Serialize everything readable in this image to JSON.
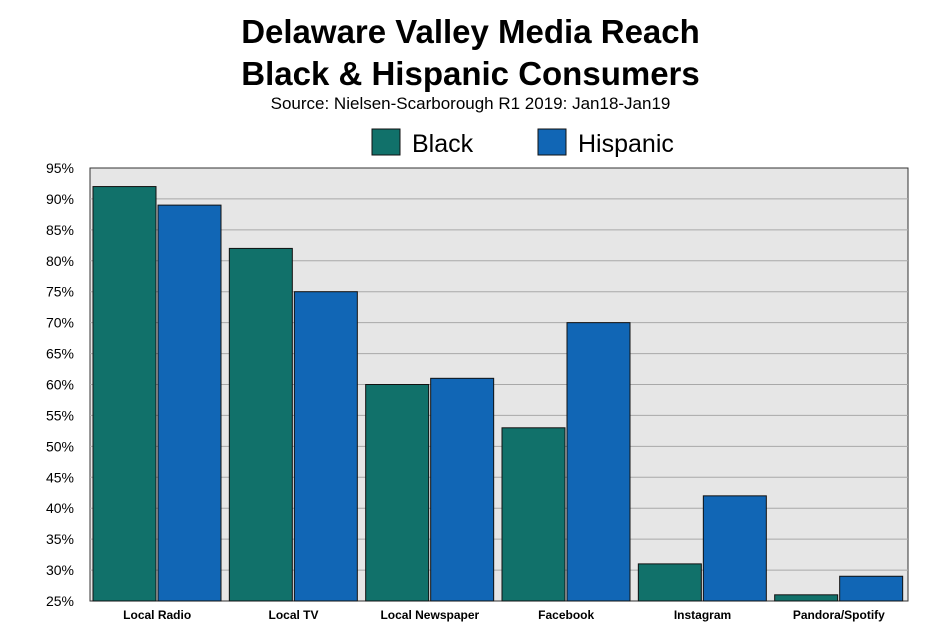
{
  "colors": {
    "black_series": "#11716A",
    "hispanic_series": "#1166B5",
    "plot_background": "#E6E6E6",
    "gridline": "#A8A8A8"
  },
  "chart_data": {
    "type": "bar",
    "title_line1": "Delaware Valley Media Reach",
    "title_line2": "Black & Hispanic Consumers",
    "subtitle": "Source: Nielsen-Scarborough R1 2019: Jan18-Jan19",
    "categories": [
      "Local Radio",
      "Local TV",
      "Local Newspaper",
      "Facebook",
      "Instagram",
      "Pandora/Spotify"
    ],
    "series": [
      {
        "name": "Black",
        "values": [
          92,
          82,
          60,
          53,
          31,
          26
        ]
      },
      {
        "name": "Hispanic",
        "values": [
          89,
          75,
          61,
          70,
          42,
          29
        ]
      }
    ],
    "ylim": [
      25,
      95
    ],
    "ytick_step": 5,
    "y_tick_suffix": "%",
    "grid": true,
    "legend_position": "top-center",
    "xlabel": "",
    "ylabel": ""
  }
}
